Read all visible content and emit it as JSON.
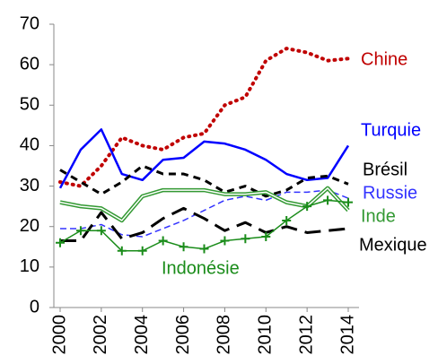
{
  "chart_data": {
    "type": "line",
    "x": [
      2000,
      2001,
      2002,
      2003,
      2004,
      2005,
      2006,
      2007,
      2008,
      2009,
      2010,
      2011,
      2012,
      2013,
      2014
    ],
    "xlim": [
      2000,
      2014
    ],
    "xticks": [
      2000,
      2002,
      2004,
      2006,
      2008,
      2010,
      2012,
      2014
    ],
    "ylim": [
      0,
      70
    ],
    "yticks": [
      0,
      10,
      20,
      30,
      40,
      50,
      60,
      70
    ],
    "series": [
      {
        "name": "Chine",
        "color": "#c00000",
        "style": "dotted",
        "values": [
          31,
          30,
          35,
          42,
          40,
          39,
          42,
          43,
          50,
          52,
          61,
          64,
          63,
          61,
          61.5
        ]
      },
      {
        "name": "Turquie",
        "color": "#0000ff",
        "style": "solid",
        "values": [
          29.5,
          39,
          44,
          33,
          31.5,
          36.5,
          37,
          41,
          40.5,
          39,
          36.5,
          33,
          31.5,
          32,
          40
        ]
      },
      {
        "name": "Brésil",
        "color": "#000000",
        "style": "dashed",
        "values": [
          34,
          31,
          28,
          31,
          35,
          33,
          33,
          31.5,
          28.5,
          30,
          27.5,
          29,
          32,
          32.5,
          30.5
        ]
      },
      {
        "name": "Russie",
        "color": "#3333ff",
        "style": "thin-dashed",
        "values": [
          19.5,
          19.5,
          20.5,
          18,
          17.5,
          19.5,
          21.5,
          24,
          26.5,
          27.5,
          26.5,
          28.5,
          28.5,
          29,
          27
        ]
      },
      {
        "name": "Inde",
        "color": "#339933",
        "style": "double",
        "values": [
          26,
          25,
          24.5,
          21.5,
          27.5,
          29,
          29,
          29,
          28,
          28,
          28.5,
          26,
          25,
          29.5,
          24
        ]
      },
      {
        "name": "Mexique",
        "color": "#000000",
        "style": "long-dashed",
        "values": [
          16.5,
          16.5,
          23.5,
          17,
          18.5,
          22,
          24.5,
          22,
          19,
          21,
          18.5,
          20,
          18.5,
          19,
          19.5
        ]
      },
      {
        "name": "Indonésie",
        "color": "#1a8c1a",
        "style": "plus",
        "values": [
          16,
          19,
          19,
          14,
          14,
          16.5,
          15,
          14.5,
          16.5,
          17,
          17.5,
          21.5,
          25,
          26.5,
          26
        ]
      }
    ]
  }
}
